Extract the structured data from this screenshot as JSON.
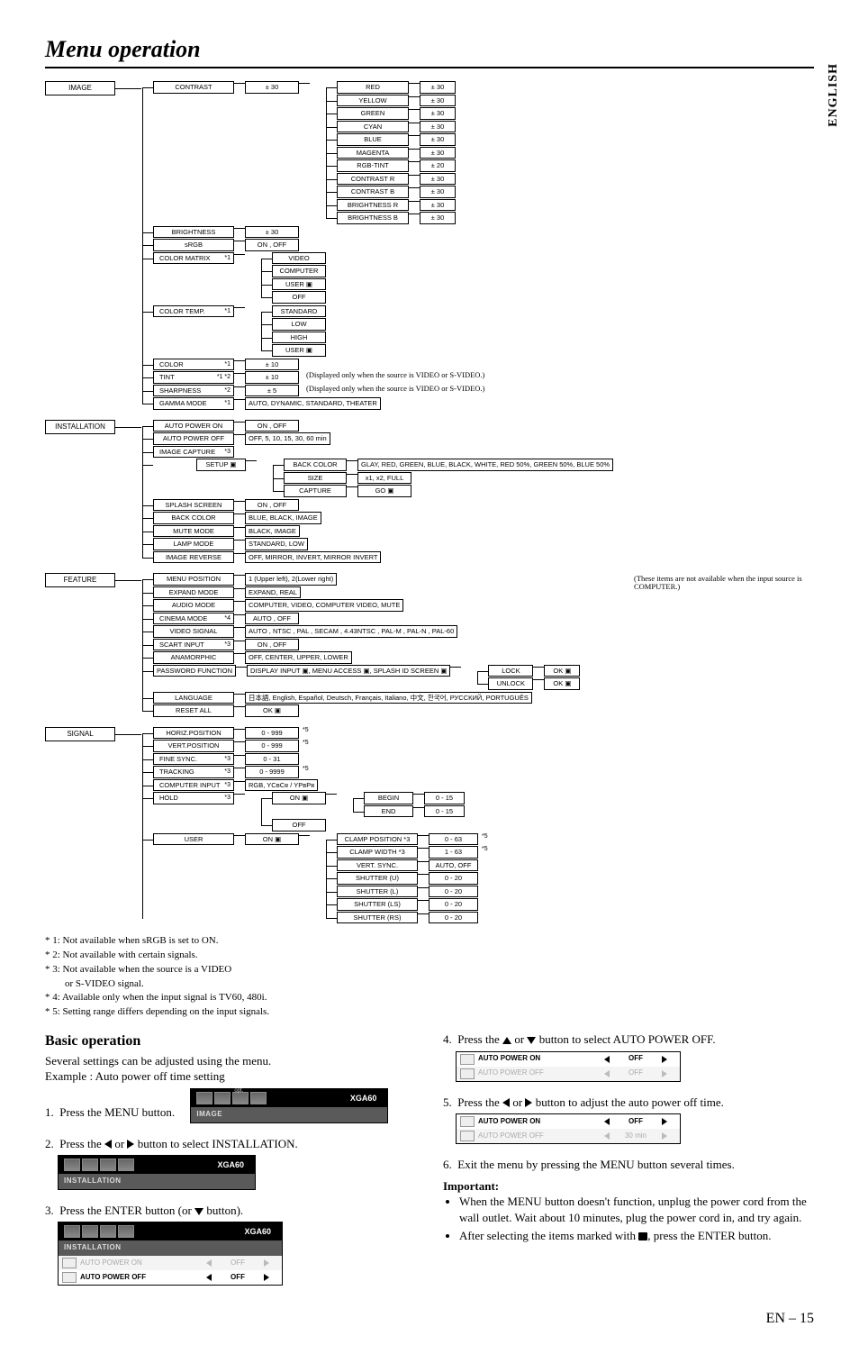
{
  "page": {
    "title_italic": "Menu operation",
    "lang_tab": "ENGLISH",
    "page_num": "EN – 15"
  },
  "cats": [
    {
      "label": "IMAGE",
      "rows": [
        {
          "name": "CONTRAST",
          "right": [
            {
              "v": "± 30"
            },
            {
              "list": [
                "RED",
                "YELLOW",
                "GREEN",
                "CYAN",
                "BLUE",
                "MAGENTA",
                "RGB-TINT",
                "CONTRAST R",
                "CONTRAST B",
                "BRIGHTNESS R",
                "BRIGHTNESS B"
              ],
              "vals": [
                "± 30",
                "± 30",
                "± 30",
                "± 30",
                "± 30",
                "± 30",
                "± 20",
                "± 30",
                "± 30",
                "± 30",
                "± 30"
              ]
            }
          ]
        },
        {
          "name": "BRIGHTNESS",
          "right": [
            {
              "v": "± 30"
            }
          ]
        },
        {
          "name": "sRGB",
          "right": [
            {
              "v": "ON , OFF"
            }
          ]
        },
        {
          "name": "COLOR MATRIX",
          "s": "*1",
          "right": [
            {
              "stack": [
                "VIDEO",
                "COMPUTER",
                "USER ▣",
                "OFF"
              ]
            }
          ]
        },
        {
          "name": "COLOR TEMP.",
          "s": "*1",
          "right": [
            {
              "stack": [
                "STANDARD",
                "LOW",
                "HIGH",
                "USER ▣"
              ]
            }
          ]
        },
        {
          "name": "COLOR",
          "s": "*1",
          "right": [
            {
              "v": "± 10"
            }
          ]
        },
        {
          "name": "TINT",
          "s": "*1 *2",
          "right": [
            {
              "v": "± 10",
              "note": "(Displayed only when the source is VIDEO or S-VIDEO.)"
            }
          ]
        },
        {
          "name": "SHARPNESS",
          "s": "*2",
          "right": [
            {
              "v": "± 5",
              "note": "(Displayed only when the source is VIDEO or S-VIDEO.)"
            }
          ]
        },
        {
          "name": "GAMMA MODE",
          "s": "*1",
          "right": [
            {
              "v": "AUTO, DYNAMIC, STANDARD, THEATER"
            }
          ]
        }
      ]
    },
    {
      "label": "INSTALLATION",
      "rows": [
        {
          "name": "AUTO POWER ON",
          "right": [
            {
              "v": "ON , OFF"
            }
          ]
        },
        {
          "name": "AUTO POWER OFF",
          "right": [
            {
              "v": "OFF,  5,  10,  15,  30,  60 min"
            }
          ]
        },
        {
          "name": "IMAGE CAPTURE",
          "s": "*3",
          "sub": {
            "name": "SETUP ▣",
            "stack": [
              "BACK COLOR",
              "SIZE",
              "CAPTURE"
            ],
            "vals": [
              "GLAY, RED, GREEN, BLUE, BLACK, WHITE, RED 50%, GREEN 50%, BLUE 50%",
              "x1, x2, FULL",
              "GO ▣"
            ]
          }
        },
        {
          "name": "SPLASH SCREEN",
          "right": [
            {
              "v": "ON , OFF"
            }
          ]
        },
        {
          "name": "BACK COLOR",
          "right": [
            {
              "v": "BLUE, BLACK, IMAGE"
            }
          ]
        },
        {
          "name": "MUTE MODE",
          "right": [
            {
              "v": "BLACK, IMAGE"
            }
          ]
        },
        {
          "name": "LAMP MODE",
          "right": [
            {
              "v": "STANDARD, LOW"
            }
          ]
        },
        {
          "name": "IMAGE REVERSE",
          "right": [
            {
              "v": "OFF, MIRROR, INVERT, MIRROR INVERT"
            }
          ]
        }
      ]
    },
    {
      "label": "FEATURE",
      "side_note": "(These items are not available when the input source is COMPUTER.)",
      "rows": [
        {
          "name": "MENU POSITION",
          "right": [
            {
              "v": "1 (Upper left), 2(Lower right)"
            }
          ]
        },
        {
          "name": "EXPAND MODE",
          "right": [
            {
              "v": "EXPAND, REAL"
            }
          ]
        },
        {
          "name": "AUDIO MODE",
          "right": [
            {
              "v": "COMPUTER, VIDEO, COMPUTER VIDEO, MUTE"
            }
          ]
        },
        {
          "name": "CINEMA MODE",
          "s": "*4",
          "right": [
            {
              "v": "AUTO , OFF"
            }
          ]
        },
        {
          "name": "VIDEO SIGNAL",
          "right": [
            {
              "v": "AUTO , NTSC , PAL , SECAM , 4.43NTSC , PAL-M , PAL-N , PAL-60"
            }
          ]
        },
        {
          "name": "SCART INPUT",
          "s": "*3",
          "right": [
            {
              "v": "ON , OFF"
            }
          ]
        },
        {
          "name": "ANAMORPHIC",
          "right": [
            {
              "v": "OFF, CENTER, UPPER, LOWER"
            }
          ]
        },
        {
          "name": "PASSWORD FUNCTION",
          "right": [
            {
              "v": "DISPLAY INPUT ▣, MENU ACCESS ▣, SPLASH ID SCREEN ▣",
              "after": [
                "LOCK",
                "UNLOCK"
              ],
              "after2": [
                "OK ▣",
                "OK ▣"
              ]
            }
          ]
        },
        {
          "name": "LANGUAGE",
          "right": [
            {
              "v": "日本語, English, Español, Deutsch, Français, Italiano, 中文, 한국어, РУССКИЙ, PORTUGUÊS"
            }
          ]
        },
        {
          "name": "RESET ALL",
          "right": [
            {
              "v": "OK ▣"
            }
          ]
        }
      ]
    },
    {
      "label": "SIGNAL",
      "rows": [
        {
          "name": "HORIZ.POSITION",
          "right": [
            {
              "v": "0 - 999",
              "s": "*5"
            }
          ]
        },
        {
          "name": "VERT.POSITION",
          "right": [
            {
              "v": "0 - 999",
              "s": "*5"
            }
          ]
        },
        {
          "name": "FINE SYNC.",
          "s": "*3",
          "right": [
            {
              "v": "0 - 31"
            }
          ]
        },
        {
          "name": "TRACKING",
          "s": "*3",
          "right": [
            {
              "v": "0 - 9999",
              "s": "*5"
            }
          ]
        },
        {
          "name": "COMPUTER INPUT",
          "s": "*3",
          "right": [
            {
              "v": "RGB, YCʙCʀ / YPʙPʀ"
            }
          ]
        },
        {
          "name": "HOLD",
          "s": "*3",
          "right": [
            {
              "stack": [
                "ON ▣",
                "OFF"
              ],
              "list2": [
                "BEGIN",
                "END"
              ],
              "vals2": [
                "0 - 15",
                "0 - 15"
              ]
            }
          ]
        },
        {
          "name": "USER",
          "right": [
            {
              "v": "ON ▣",
              "list2": [
                "CLAMP POSITION *3",
                "CLAMP WIDTH  *3",
                "VERT. SYNC.",
                "SHUTTER (U)",
                "SHUTTER (L)",
                "SHUTTER (LS)",
                "SHUTTER (RS)"
              ],
              "vals2": [
                "0 - 63",
                "1 - 63",
                "AUTO, OFF",
                "0 - 20",
                "0 - 20",
                "0 - 20",
                "0 - 20"
              ],
              "ss2": [
                "*5",
                "*5",
                "",
                "",
                "",
                "",
                ""
              ]
            }
          ]
        }
      ]
    }
  ],
  "footnotes": [
    "* 1: Not available when sRGB is set to ON.",
    "* 2: Not available with certain signals.",
    "* 3: Not available when the source is a VIDEO",
    "        or S-VIDEO signal.",
    "* 4: Available only when the input signal is TV60, 480i.",
    "* 5: Setting range differs depending on the input signals."
  ],
  "basic": {
    "heading": "Basic operation",
    "intro": "Several settings can be adjusted using the menu.",
    "example": "Example : Auto power off time setting",
    "s1": "Press the MENU button.",
    "s2a": "Press the ",
    "s2b": " or ",
    "s2c": " button to select INSTALLATION.",
    "s3a": "Press the ENTER button (or ",
    "s3b": " button).",
    "s4a": "Press the ",
    "s4b": " or ",
    "s4c": " button to select AUTO POWER OFF.",
    "s5a": "Press the ",
    "s5b": " or ",
    "s5c": " button to adjust the auto power off time.",
    "s6": "Exit the menu by pressing the MENU button several times.",
    "imp": "Important:",
    "b1": "When the MENU button doesn't function, unplug the power cord from the wall outlet. Wait about 10 minutes, plug the power cord in, and try again.",
    "b2a": "After selecting the items marked with ",
    "b2b": ", press the ENTER button.",
    "osd_title": "XGA60",
    "tab_image": "IMAGE",
    "tab_install": "INSTALLATION",
    "apon": "AUTO POWER ON",
    "apoff": "AUTO POWER OFF",
    "off": "OFF",
    "min30": "30 min",
    "opt": "opt."
  }
}
